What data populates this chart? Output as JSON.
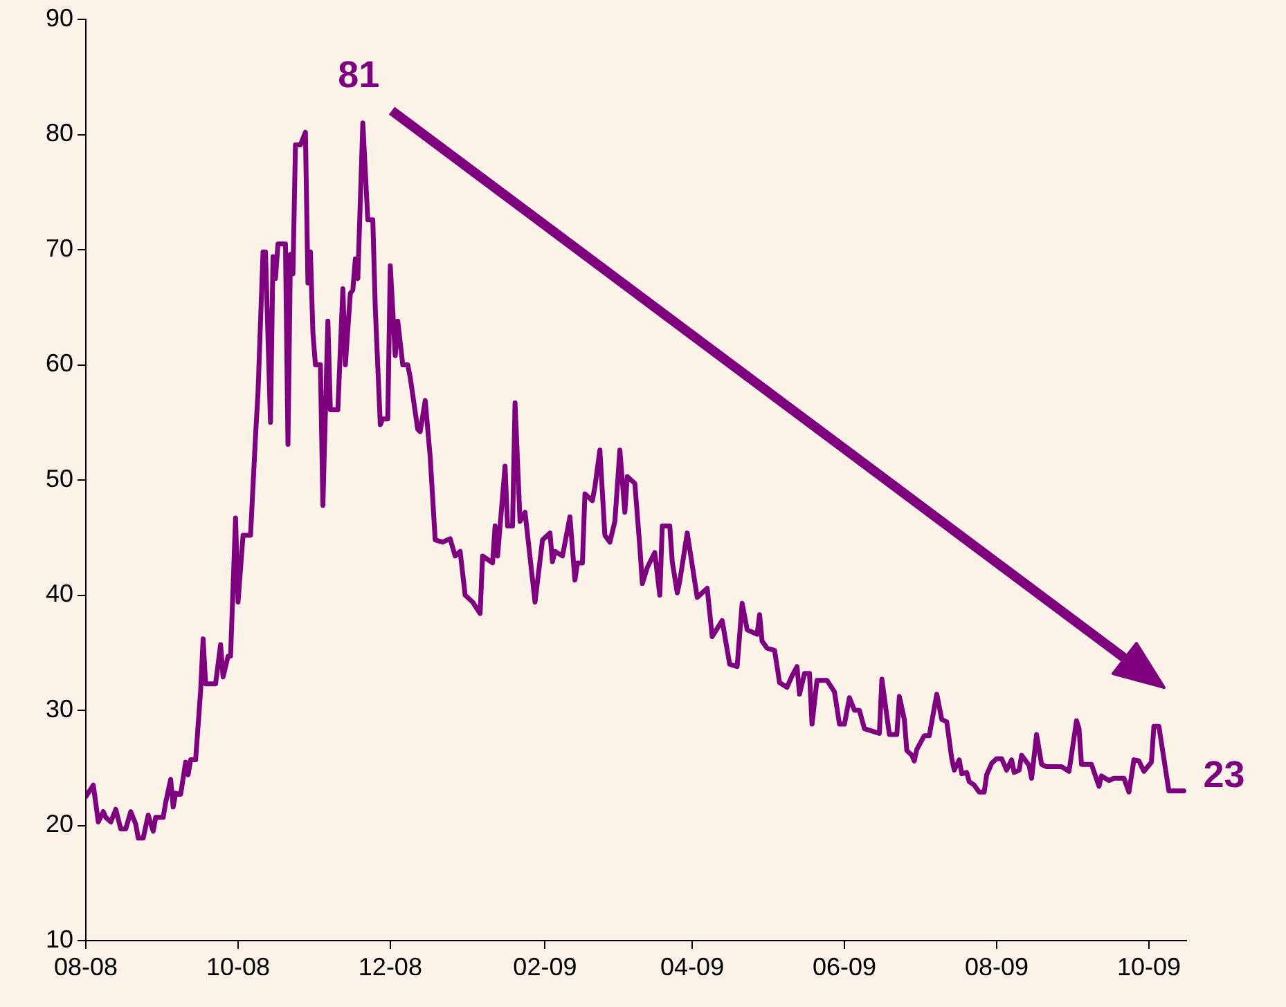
{
  "chart_data": {
    "type": "line",
    "color": "#7f007f",
    "x": [
      "2008-08-01",
      "2008-08-04",
      "2008-08-06",
      "2008-08-08",
      "2008-08-09",
      "2008-08-11",
      "2008-08-13",
      "2008-08-15",
      "2008-08-17",
      "2008-08-19",
      "2008-08-21",
      "2008-08-22",
      "2008-08-24",
      "2008-08-26",
      "2008-08-28",
      "2008-08-29",
      "2008-09-01",
      "2008-09-02",
      "2008-09-04",
      "2008-09-05",
      "2008-09-06",
      "2008-09-08",
      "2008-09-10",
      "2008-09-11",
      "2008-09-12",
      "2008-09-14",
      "2008-09-16",
      "2008-09-17",
      "2008-09-18",
      "2008-09-22",
      "2008-09-24",
      "2008-09-25",
      "2008-09-27",
      "2008-09-28",
      "2008-09-30",
      "2008-10-01",
      "2008-10-03",
      "2008-10-06",
      "2008-10-08",
      "2008-10-09",
      "2008-10-11",
      "2008-10-12",
      "2008-10-14",
      "2008-10-15",
      "2008-10-16",
      "2008-10-17",
      "2008-10-20",
      "2008-10-21",
      "2008-10-22",
      "2008-10-23",
      "2008-10-24",
      "2008-10-26",
      "2008-10-28",
      "2008-10-29",
      "2008-10-30",
      "2008-10-31",
      "2008-11-01",
      "2008-11-03",
      "2008-11-04",
      "2008-11-06",
      "2008-11-07",
      "2008-11-10",
      "2008-11-12",
      "2008-11-13",
      "2008-11-15",
      "2008-11-16",
      "2008-11-17",
      "2008-11-18",
      "2008-11-20",
      "2008-11-22",
      "2008-11-24",
      "2008-11-25",
      "2008-11-27",
      "2008-11-28",
      "2008-11-30",
      "2008-12-01",
      "2008-12-03",
      "2008-12-04",
      "2008-12-06",
      "2008-12-08",
      "2008-12-09",
      "2008-12-11",
      "2008-12-12",
      "2008-12-13",
      "2008-12-15",
      "2008-12-17",
      "2008-12-19",
      "2008-12-22",
      "2008-12-25",
      "2008-12-27",
      "2008-12-29",
      "2008-12-31",
      "2009-01-03",
      "2009-01-06",
      "2009-01-07",
      "2009-01-11",
      "2009-01-12",
      "2009-01-13",
      "2009-01-16",
      "2009-01-17",
      "2009-01-19",
      "2009-01-20",
      "2009-01-22",
      "2009-01-24",
      "2009-01-28",
      "2009-01-31",
      "2009-02-03",
      "2009-02-04",
      "2009-02-05",
      "2009-02-08",
      "2009-02-11",
      "2009-02-13",
      "2009-02-14",
      "2009-02-16",
      "2009-02-17",
      "2009-02-20",
      "2009-02-21",
      "2009-02-23",
      "2009-02-25",
      "2009-02-27",
      "2009-03-01",
      "2009-03-03",
      "2009-03-05",
      "2009-03-06",
      "2009-03-09",
      "2009-03-11",
      "2009-03-12",
      "2009-03-14",
      "2009-03-17",
      "2009-03-19",
      "2009-03-20",
      "2009-03-23",
      "2009-03-24",
      "2009-03-26",
      "2009-03-27",
      "2009-03-30",
      "2009-04-03",
      "2009-04-07",
      "2009-04-09",
      "2009-04-13",
      "2009-04-16",
      "2009-04-19",
      "2009-04-21",
      "2009-04-23",
      "2009-04-27",
      "2009-04-28",
      "2009-04-29",
      "2009-05-01",
      "2009-05-04",
      "2009-05-06",
      "2009-05-09",
      "2009-05-11",
      "2009-05-13",
      "2009-05-14",
      "2009-05-16",
      "2009-05-18",
      "2009-05-19",
      "2009-05-21",
      "2009-05-25",
      "2009-05-28",
      "2009-05-30",
      "2009-06-01",
      "2009-06-03",
      "2009-06-05",
      "2009-06-07",
      "2009-06-09",
      "2009-06-15",
      "2009-06-16",
      "2009-06-19",
      "2009-06-22",
      "2009-06-23",
      "2009-06-25",
      "2009-06-26",
      "2009-06-28",
      "2009-06-29",
      "2009-06-30",
      "2009-07-03",
      "2009-07-05",
      "2009-07-08",
      "2009-07-10",
      "2009-07-12",
      "2009-07-14",
      "2009-07-15",
      "2009-07-17",
      "2009-07-18",
      "2009-07-20",
      "2009-07-21",
      "2009-07-23",
      "2009-07-25",
      "2009-07-27",
      "2009-07-28",
      "2009-07-30",
      "2009-08-01",
      "2009-08-03",
      "2009-08-05",
      "2009-08-07",
      "2009-08-08",
      "2009-08-10",
      "2009-08-11",
      "2009-08-14",
      "2009-08-15",
      "2009-08-17",
      "2009-08-19",
      "2009-08-21",
      "2009-08-27",
      "2009-08-30",
      "2009-09-02",
      "2009-09-03",
      "2009-09-04",
      "2009-09-08",
      "2009-09-11",
      "2009-09-12",
      "2009-09-15",
      "2009-09-17",
      "2009-09-21",
      "2009-09-23",
      "2009-09-25",
      "2009-09-27",
      "2009-09-29",
      "2009-10-02",
      "2009-10-03",
      "2009-10-05",
      "2009-10-09",
      "2009-10-13",
      "2009-10-15"
    ],
    "values": [
      22.5,
      23.5,
      20.3,
      21.2,
      20.7,
      20.3,
      21.4,
      19.7,
      19.7,
      21.2,
      20.1,
      18.9,
      18.9,
      20.9,
      19.5,
      20.7,
      20.7,
      22.0,
      24.0,
      21.6,
      22.8,
      22.7,
      25.5,
      24.4,
      25.7,
      25.7,
      31.7,
      36.2,
      32.3,
      32.3,
      35.7,
      32.9,
      34.7,
      34.7,
      46.7,
      39.4,
      45.2,
      45.2,
      53.8,
      57.6,
      69.8,
      69.8,
      55.0,
      69.4,
      67.5,
      70.5,
      70.5,
      53.1,
      69.6,
      67.9,
      79.1,
      79.1,
      80.2,
      67.1,
      69.8,
      62.8,
      60.0,
      60.0,
      47.8,
      63.8,
      56.1,
      56.1,
      66.6,
      60.0,
      66.2,
      66.5,
      69.2,
      67.5,
      81,
      72.6,
      72.6,
      64.9,
      54.8,
      55.3,
      55.3,
      68.6,
      60.8,
      63.8,
      60.0,
      60.0,
      58.9,
      55.9,
      54.4,
      54.2,
      56.9,
      52.0,
      44.8,
      44.6,
      44.9,
      43.4,
      43.8,
      40.0,
      39.4,
      38.4,
      43.4,
      42.8,
      46.0,
      43.4,
      51.2,
      46.0,
      46.0,
      56.7,
      46.4,
      47.2,
      39.4,
      44.8,
      45.4,
      42.9,
      43.8,
      43.4,
      46.8,
      41.3,
      42.8,
      42.8,
      48.8,
      48.2,
      49.4,
      52.6,
      45.2,
      44.6,
      46.4,
      52.6,
      47.2,
      50.3,
      49.7,
      44.2,
      41.0,
      42.4,
      43.7,
      40.0,
      46.0,
      46.0,
      42.9,
      40.2,
      41.2,
      45.4,
      39.8,
      40.6,
      36.4,
      37.8,
      34.0,
      33.8,
      39.3,
      37.0,
      36.6,
      38.3,
      36.0,
      35.4,
      35.2,
      32.4,
      32.0,
      33.0,
      33.8,
      31.4,
      33.2,
      33.2,
      28.8,
      32.6,
      32.6,
      31.6,
      28.8,
      28.8,
      31.1,
      30.0,
      30.0,
      28.4,
      28.0,
      32.7,
      27.9,
      27.9,
      31.2,
      29.2,
      26.5,
      26.1,
      25.6,
      26.6,
      27.8,
      27.8,
      31.4,
      29.2,
      29.0,
      25.8,
      24.8,
      25.7,
      24.5,
      24.6,
      23.8,
      23.5,
      22.9,
      22.9,
      24.4,
      25.4,
      25.8,
      25.8,
      24.8,
      25.7,
      24.6,
      24.8,
      26.1,
      25.2,
      24.1,
      27.9,
      25.3,
      25.1,
      25.1,
      24.7,
      29.1,
      28.4,
      25.3,
      25.3,
      23.4,
      24.3,
      23.9,
      24.1,
      24.1,
      22.9,
      25.7,
      25.6,
      24.7,
      25.5,
      28.6,
      28.6,
      23.0,
      23.0,
      23
    ],
    "xlim": [
      "2008-08-01",
      "2009-10-16"
    ],
    "xticks": [
      {
        "value": "2008-08-01",
        "label": "08-08"
      },
      {
        "value": "2008-10-01",
        "label": "10-08"
      },
      {
        "value": "2008-12-01",
        "label": "12-08"
      },
      {
        "value": "2009-02-01",
        "label": "02-09"
      },
      {
        "value": "2009-04-01",
        "label": "04-09"
      },
      {
        "value": "2009-06-01",
        "label": "06-09"
      },
      {
        "value": "2009-08-01",
        "label": "08-09"
      },
      {
        "value": "2009-10-01",
        "label": "10-09"
      }
    ],
    "ylim": [
      10,
      90
    ],
    "yticks": [
      10,
      20,
      30,
      40,
      50,
      60,
      70,
      80,
      90
    ],
    "marker": "none",
    "line_style": "solid",
    "legend": false,
    "annotations": [
      {
        "text": "81",
        "x": "2008-11-20",
        "y": 81
      },
      {
        "text": "23",
        "x": "2009-10-15",
        "y": 23
      }
    ]
  }
}
